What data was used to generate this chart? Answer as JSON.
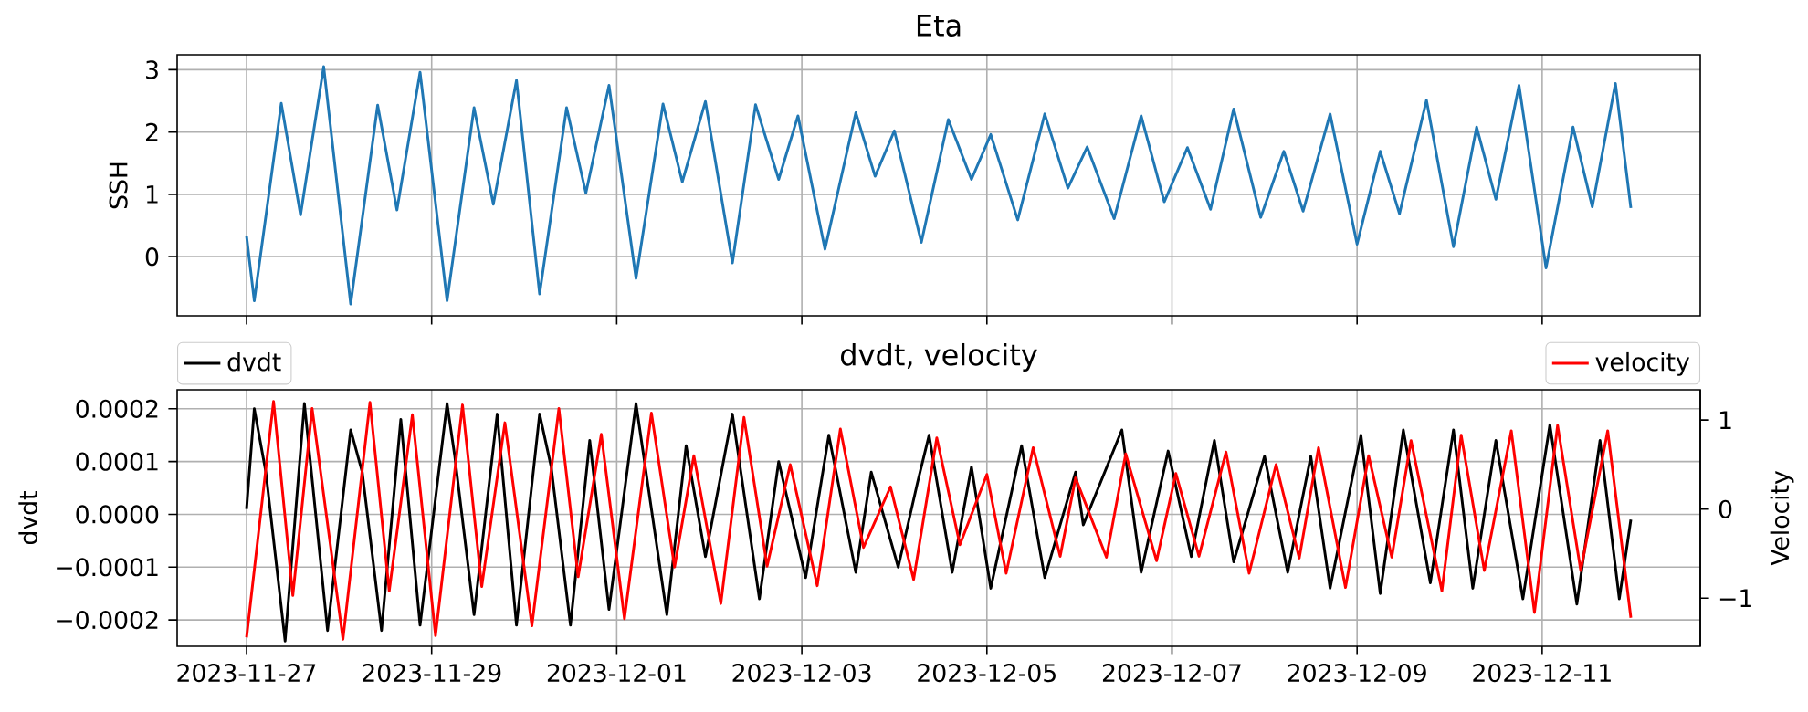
{
  "chart_data": [
    {
      "type": "line",
      "title": "Eta",
      "ylabel": "SSH",
      "color": "#1f77b4",
      "grid": true,
      "tick_labels": "y",
      "xlim": [
        "2023-11-26T06:00",
        "2023-12-12T17:00"
      ],
      "xticks": [
        {
          "value": "2023-11-27",
          "label": null
        },
        {
          "value": "2023-11-29",
          "label": null
        },
        {
          "value": "2023-12-01",
          "label": null
        },
        {
          "value": "2023-12-03",
          "label": null
        },
        {
          "value": "2023-12-05",
          "label": null
        },
        {
          "value": "2023-12-07",
          "label": null
        },
        {
          "value": "2023-12-09",
          "label": null
        },
        {
          "value": "2023-12-11",
          "label": null
        }
      ],
      "ylim": [
        -0.95,
        3.24
      ],
      "yticks": [
        0,
        1,
        2,
        3
      ],
      "x": [
        "2023-11-27T00:00",
        "2023-11-27T02:00",
        "2023-11-27T09:00",
        "2023-11-27T14:00",
        "2023-11-27T20:00",
        "2023-11-28T03:00",
        "2023-11-28T10:00",
        "2023-11-28T15:00",
        "2023-11-28T21:00",
        "2023-11-29T04:00",
        "2023-11-29T11:00",
        "2023-11-29T16:00",
        "2023-11-29T22:00",
        "2023-11-30T04:00",
        "2023-11-30T11:00",
        "2023-11-30T16:00",
        "2023-11-30T22:00",
        "2023-12-01T05:00",
        "2023-12-01T12:00",
        "2023-12-01T17:00",
        "2023-12-01T23:00",
        "2023-12-02T06:00",
        "2023-12-02T12:00",
        "2023-12-02T18:00",
        "2023-12-02T23:00",
        "2023-12-03T06:00",
        "2023-12-03T14:00",
        "2023-12-03T19:00",
        "2023-12-04T00:00",
        "2023-12-04T07:00",
        "2023-12-04T14:00",
        "2023-12-04T20:00",
        "2023-12-05T01:00",
        "2023-12-05T08:00",
        "2023-12-05T15:00",
        "2023-12-05T21:00",
        "2023-12-06T02:00",
        "2023-12-06T09:00",
        "2023-12-06T16:00",
        "2023-12-06T22:00",
        "2023-12-07T04:00",
        "2023-12-07T10:00",
        "2023-12-07T16:00",
        "2023-12-07T23:00",
        "2023-12-08T05:00",
        "2023-12-08T10:00",
        "2023-12-08T17:00",
        "2023-12-09T00:00",
        "2023-12-09T06:00",
        "2023-12-09T11:00",
        "2023-12-09T18:00",
        "2023-12-10T01:00",
        "2023-12-10T07:00",
        "2023-12-10T12:00",
        "2023-12-10T18:00",
        "2023-12-11T01:00",
        "2023-12-11T08:00",
        "2023-12-11T13:00",
        "2023-12-11T19:00",
        "2023-12-11T23:00"
      ],
      "values": [
        0.33,
        -0.71,
        2.46,
        0.67,
        3.05,
        -0.76,
        2.43,
        0.75,
        2.96,
        -0.71,
        2.39,
        0.84,
        2.83,
        -0.6,
        2.39,
        1.02,
        2.75,
        -0.35,
        2.45,
        1.2,
        2.49,
        -0.1,
        2.44,
        1.24,
        2.26,
        0.12,
        2.31,
        1.29,
        2.02,
        0.23,
        2.2,
        1.24,
        1.96,
        0.59,
        2.29,
        1.1,
        1.76,
        0.61,
        2.26,
        0.88,
        1.75,
        0.76,
        2.37,
        0.63,
        1.69,
        0.73,
        2.29,
        0.2,
        1.69,
        0.69,
        2.51,
        0.16,
        2.08,
        0.92,
        2.75,
        -0.18,
        2.08,
        0.8,
        2.78,
        0.78
      ]
    },
    {
      "type": "line",
      "title": "dvdt, velocity",
      "ylabel": "dvdt",
      "y2label": "Velocity",
      "grid": true,
      "legend": "top left",
      "xlim": [
        "2023-11-26T06:00",
        "2023-12-12T17:00"
      ],
      "xticks": [
        "2023-11-27",
        "2023-11-29",
        "2023-12-01",
        "2023-12-03",
        "2023-12-05",
        "2023-12-07",
        "2023-12-09",
        "2023-12-11"
      ],
      "ylim": [
        -0.00025,
        0.000236
      ],
      "yticks": [
        {
          "value": -0.0002,
          "label": "−0.0002"
        },
        {
          "value": -0.0001,
          "label": "−0.0001"
        },
        {
          "value": 0,
          "label": "0.0000"
        },
        {
          "value": 0.0001,
          "label": "0.0001"
        },
        {
          "value": 0.0002,
          "label": "0.0002"
        }
      ],
      "y2lim": [
        -1.54,
        1.34
      ],
      "y2ticks": [
        {
          "value": -1,
          "label": "−1"
        },
        0,
        1
      ],
      "series": [
        {
          "name": "dvdt",
          "color": "#000000",
          "x": [
            "2023-11-27T00:00",
            "2023-11-27T02:00",
            "2023-11-27T05:00",
            "2023-11-27T10:00",
            "2023-11-27T15:00",
            "2023-11-27T21:00",
            "2023-11-28T03:00",
            "2023-11-28T06:00",
            "2023-11-28T11:00",
            "2023-11-28T16:00",
            "2023-11-28T21:00",
            "2023-11-29T04:00",
            "2023-11-29T06:00",
            "2023-11-29T11:00",
            "2023-11-29T17:00",
            "2023-11-29T22:00",
            "2023-11-30T04:00",
            "2023-11-30T07:00",
            "2023-11-30T12:00",
            "2023-11-30T17:00",
            "2023-11-30T22:00",
            "2023-12-01T05:00",
            "2023-12-01T13:00",
            "2023-12-01T18:00",
            "2023-12-01T23:00",
            "2023-12-02T06:00",
            "2023-12-02T13:00",
            "2023-12-02T18:00",
            "2023-12-03T01:00",
            "2023-12-03T07:00",
            "2023-12-03T14:00",
            "2023-12-03T18:00",
            "2023-12-04T01:00",
            "2023-12-04T06:00",
            "2023-12-04T09:00",
            "2023-12-04T15:00",
            "2023-12-04T20:00",
            "2023-12-05T01:00",
            "2023-12-05T09:00",
            "2023-12-05T15:00",
            "2023-12-05T23:00",
            "2023-12-06T01:00",
            "2023-12-06T11:00",
            "2023-12-06T16:00",
            "2023-12-06T23:00",
            "2023-12-07T05:00",
            "2023-12-07T11:00",
            "2023-12-07T16:00",
            "2023-12-08T00:00",
            "2023-12-08T06:00",
            "2023-12-08T12:00",
            "2023-12-08T17:00",
            "2023-12-09T01:00",
            "2023-12-09T06:00",
            "2023-12-09T12:00",
            "2023-12-09T19:00",
            "2023-12-10T01:00",
            "2023-12-10T06:00",
            "2023-12-10T12:00",
            "2023-12-10T19:00",
            "2023-12-11T02:00",
            "2023-12-11T09:00",
            "2023-12-11T15:00",
            "2023-12-11T20:00",
            "2023-12-11T23:00"
          ],
          "values": [
            1e-05,
            0.0002,
            8e-05,
            -0.00024,
            0.00021,
            -0.00022,
            0.00016,
            8e-05,
            -0.00022,
            0.00018,
            -0.00021,
            0.00021,
            0.00011,
            -0.00019,
            0.00019,
            -0.00021,
            0.00019,
            9e-05,
            -0.00021,
            0.00014,
            -0.00018,
            0.00021,
            -0.00019,
            0.00013,
            -8e-05,
            0.00019,
            -0.00016,
            0.0001,
            -0.00012,
            0.00015,
            -0.00011,
            8e-05,
            -0.0001,
            6e-05,
            0.00015,
            -0.00011,
            9e-05,
            -0.00014,
            0.00013,
            -0.00012,
            8e-05,
            -2e-05,
            0.00016,
            -0.00011,
            0.00012,
            -8e-05,
            0.00014,
            -9e-05,
            0.00011,
            -0.00011,
            0.00011,
            -0.00014,
            0.00015,
            -0.00015,
            0.00016,
            -0.00013,
            0.00016,
            -0.00014,
            0.00014,
            -0.00016,
            0.00017,
            -0.00017,
            0.00014,
            -0.00016,
            -1e-05
          ]
        },
        {
          "name": "velocity",
          "color": "#ff0000",
          "axis": "y2",
          "x": [
            "2023-11-27T00:00",
            "2023-11-27T07:00",
            "2023-11-27T12:00",
            "2023-11-27T17:00",
            "2023-11-28T01:00",
            "2023-11-28T08:00",
            "2023-11-28T13:00",
            "2023-11-28T19:00",
            "2023-11-29T01:00",
            "2023-11-29T08:00",
            "2023-11-29T13:00",
            "2023-11-29T19:00",
            "2023-11-30T02:00",
            "2023-11-30T09:00",
            "2023-11-30T14:00",
            "2023-11-30T20:00",
            "2023-12-01T02:00",
            "2023-12-01T09:00",
            "2023-12-01T15:00",
            "2023-12-01T20:00",
            "2023-12-02T03:00",
            "2023-12-02T09:00",
            "2023-12-02T15:00",
            "2023-12-02T21:00",
            "2023-12-03T04:00",
            "2023-12-03T10:00",
            "2023-12-03T16:00",
            "2023-12-03T23:00",
            "2023-12-04T05:00",
            "2023-12-04T11:00",
            "2023-12-04T17:00",
            "2023-12-05T00:00",
            "2023-12-05T05:00",
            "2023-12-05T12:00",
            "2023-12-05T19:00",
            "2023-12-05T23:00",
            "2023-12-06T07:00",
            "2023-12-06T12:00",
            "2023-12-06T20:00",
            "2023-12-07T01:00",
            "2023-12-07T07:00",
            "2023-12-07T14:00",
            "2023-12-07T20:00",
            "2023-12-08T03:00",
            "2023-12-08T09:00",
            "2023-12-08T14:00",
            "2023-12-08T21:00",
            "2023-12-09T03:00",
            "2023-12-09T09:00",
            "2023-12-09T14:00",
            "2023-12-09T22:00",
            "2023-12-10T03:00",
            "2023-12-10T09:00",
            "2023-12-10T16:00",
            "2023-12-10T22:00",
            "2023-12-11T04:00",
            "2023-12-11T10:00",
            "2023-12-11T17:00",
            "2023-12-11T23:00"
          ],
          "values": [
            -1.44,
            1.21,
            -0.97,
            1.13,
            -1.46,
            1.2,
            -0.92,
            1.06,
            -1.42,
            1.17,
            -0.87,
            0.97,
            -1.31,
            1.13,
            -0.76,
            0.84,
            -1.23,
            1.08,
            -0.65,
            0.6,
            -1.06,
            1.03,
            -0.64,
            0.5,
            -0.86,
            0.9,
            -0.43,
            0.25,
            -0.79,
            0.8,
            -0.4,
            0.39,
            -0.72,
            0.69,
            -0.53,
            0.35,
            -0.54,
            0.62,
            -0.58,
            0.4,
            -0.53,
            0.64,
            -0.72,
            0.5,
            -0.55,
            0.69,
            -0.88,
            0.6,
            -0.54,
            0.77,
            -0.92,
            0.83,
            -0.69,
            0.88,
            -1.16,
            0.94,
            -0.69,
            0.88,
            -1.22
          ]
        }
      ]
    }
  ]
}
